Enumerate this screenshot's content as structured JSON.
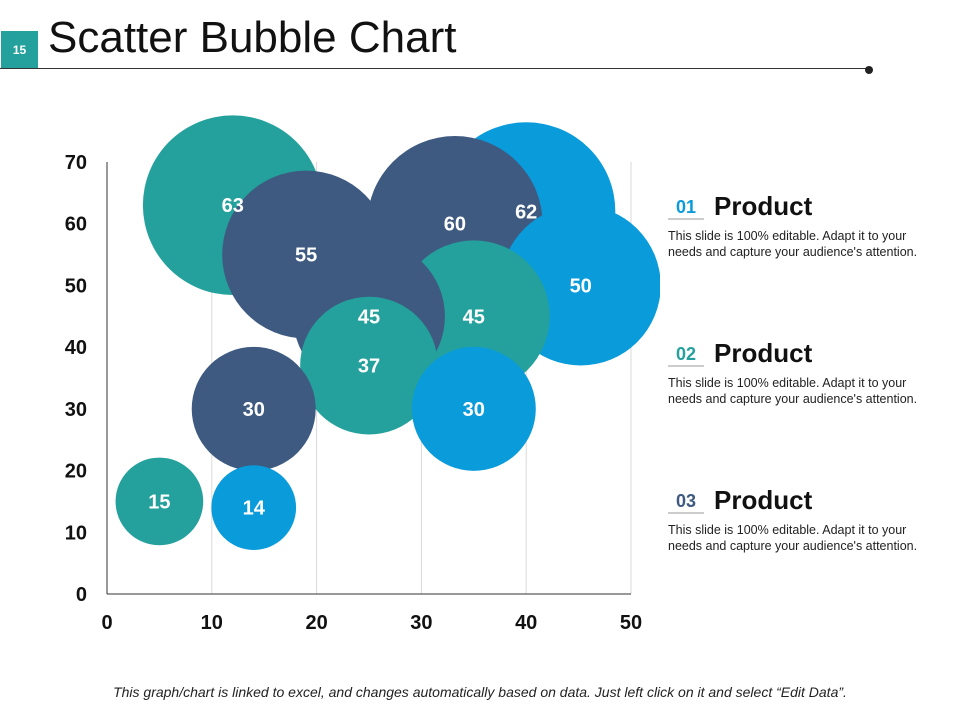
{
  "slide": {
    "number": "15",
    "title": "Scatter Bubble Chart",
    "footer": "This graph/chart is linked to excel, and changes automatically based on data. Just left click on it and select “Edit Data”."
  },
  "colors": {
    "teal": "#24a19c",
    "navy": "#3e5a80",
    "blue": "#0a9bdb",
    "grid": "#d9d9d9",
    "axis": "#333333"
  },
  "legend": [
    {
      "number": "01",
      "title": "Product",
      "description": "This slide is 100% editable. Adapt it to your needs and capture your audience's attention.",
      "color": "#0a9bdb"
    },
    {
      "number": "02",
      "title": "Product",
      "description": "This slide is 100% editable. Adapt it to your needs and capture your audience's attention.",
      "color": "#24a19c"
    },
    {
      "number": "03",
      "title": "Product",
      "description": "This slide is 100% editable. Adapt it to your needs and capture your audience's attention.",
      "color": "#3e5a80"
    }
  ],
  "chart_data": {
    "type": "scatter",
    "subtype": "bubble",
    "title": "",
    "xlabel": "",
    "ylabel": "",
    "xlim": [
      0,
      50
    ],
    "ylim": [
      0,
      70
    ],
    "xticks": [
      0,
      10,
      20,
      30,
      40,
      50
    ],
    "yticks": [
      0,
      10,
      20,
      30,
      40,
      50,
      60,
      70
    ],
    "grid": "vertical",
    "series": [
      {
        "name": "Product 01",
        "color": "#0a9bdb",
        "points": [
          {
            "x": 14,
            "y": 14,
            "size": 14
          },
          {
            "x": 35,
            "y": 30,
            "size": 30
          },
          {
            "x": 40,
            "y": 62,
            "size": 62
          },
          {
            "x": 45.2,
            "y": 50,
            "size": 50
          }
        ]
      },
      {
        "name": "Product 02",
        "color": "#24a19c",
        "points": [
          {
            "x": 5,
            "y": 15,
            "size": 15
          },
          {
            "x": 12,
            "y": 63,
            "size": 63
          },
          {
            "x": 25,
            "y": 37,
            "size": 37
          },
          {
            "x": 35,
            "y": 45,
            "size": 45
          }
        ]
      },
      {
        "name": "Product 03",
        "color": "#3e5a80",
        "points": [
          {
            "x": 14,
            "y": 30,
            "size": 30
          },
          {
            "x": 19,
            "y": 55,
            "size": 55
          },
          {
            "x": 25,
            "y": 45,
            "size": 45
          },
          {
            "x": 33.2,
            "y": 60,
            "size": 60
          }
        ]
      }
    ]
  }
}
